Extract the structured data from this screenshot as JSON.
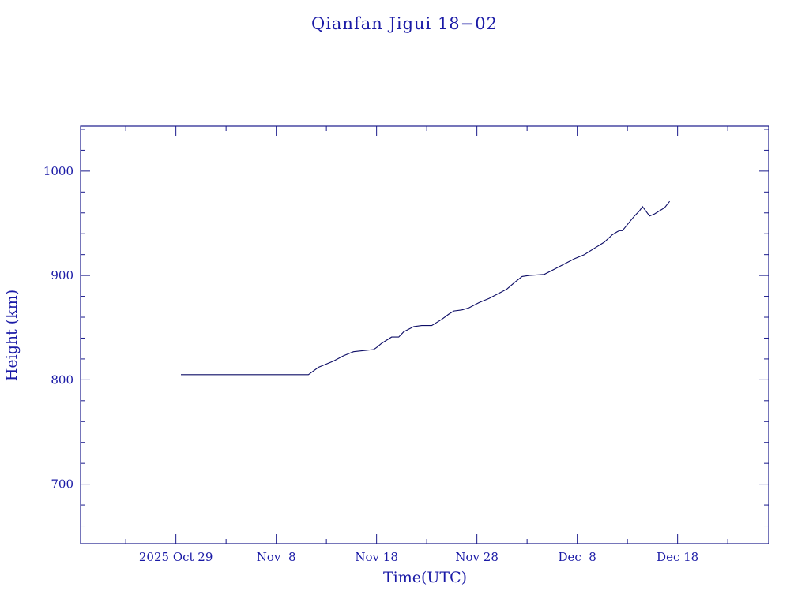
{
  "chart_data": {
    "type": "line",
    "title": "Qianfan Jigui 18−02",
    "xlabel": "Time(UTC)",
    "ylabel": "Height (km)",
    "x_unit": "date",
    "xlim": [
      "2025-10-19T12:00",
      "2025-12-27T02:00"
    ],
    "ylim": [
      643,
      1043
    ],
    "x_major_ticks": [
      "2025-10-29",
      "2025-11-08",
      "2025-11-18",
      "2025-11-28",
      "2025-12-08",
      "2025-12-18"
    ],
    "x_tick_labels": [
      "2025 Oct 29",
      "Nov  8",
      "Nov 18",
      "Nov 28",
      "Dec  8",
      "Dec 18"
    ],
    "x_minor_ticks": [
      "2025-10-24",
      "2025-11-03",
      "2025-11-13",
      "2025-11-23",
      "2025-12-03",
      "2025-12-13",
      "2025-12-23"
    ],
    "y_major_ticks": [
      700,
      800,
      900,
      1000
    ],
    "y_tick_labels": [
      "700",
      "800",
      "900",
      "1000"
    ],
    "y_minor_step": 20,
    "grid": false,
    "series": [
      {
        "x": [
          "2025-10-29T12:00",
          "2025-11-11T05:00",
          "2025-11-11T12:00",
          "2025-11-12T05:00",
          "2025-11-13T17:00",
          "2025-11-14T17:00",
          "2025-11-15T17:00",
          "2025-11-16T17:00",
          "2025-11-17T17:00",
          "2025-11-18T00:00",
          "2025-11-18T12:00",
          "2025-11-19T12:00",
          "2025-11-20T05:00",
          "2025-11-20T17:00",
          "2025-11-21T17:00",
          "2025-11-22T12:00",
          "2025-11-23T12:00",
          "2025-11-24T12:00",
          "2025-11-25T05:00",
          "2025-11-25T17:00",
          "2025-11-26T12:00",
          "2025-11-27T05:00",
          "2025-11-28T05:00",
          "2025-11-29T05:00",
          "2025-11-30T05:00",
          "2025-12-01T00:00",
          "2025-12-01T17:00",
          "2025-12-02T12:00",
          "2025-12-03T05:00",
          "2025-12-04T17:00",
          "2025-12-05T17:00",
          "2025-12-06T17:00",
          "2025-12-07T17:00",
          "2025-12-08T17:00",
          "2025-12-09T17:00",
          "2025-12-10T17:00",
          "2025-12-11T12:00",
          "2025-12-12T00:00",
          "2025-12-12T05:00",
          "2025-12-12T12:00",
          "2025-12-13T17:00",
          "2025-12-14T05:00",
          "2025-12-14T12:00",
          "2025-12-15T05:00",
          "2025-12-15T17:00",
          "2025-12-16T17:00",
          "2025-12-17T05:00"
        ],
        "values": [
          805,
          805,
          807,
          812,
          818,
          823,
          827,
          828,
          829,
          831,
          835,
          841,
          841,
          846,
          851,
          852,
          852,
          858,
          863,
          866,
          867,
          869,
          874,
          878,
          883,
          887,
          893,
          899,
          900,
          901,
          906,
          911,
          916,
          920,
          926,
          932,
          939,
          942,
          943,
          943,
          957,
          962,
          966,
          957,
          959,
          965,
          971
        ]
      }
    ]
  }
}
